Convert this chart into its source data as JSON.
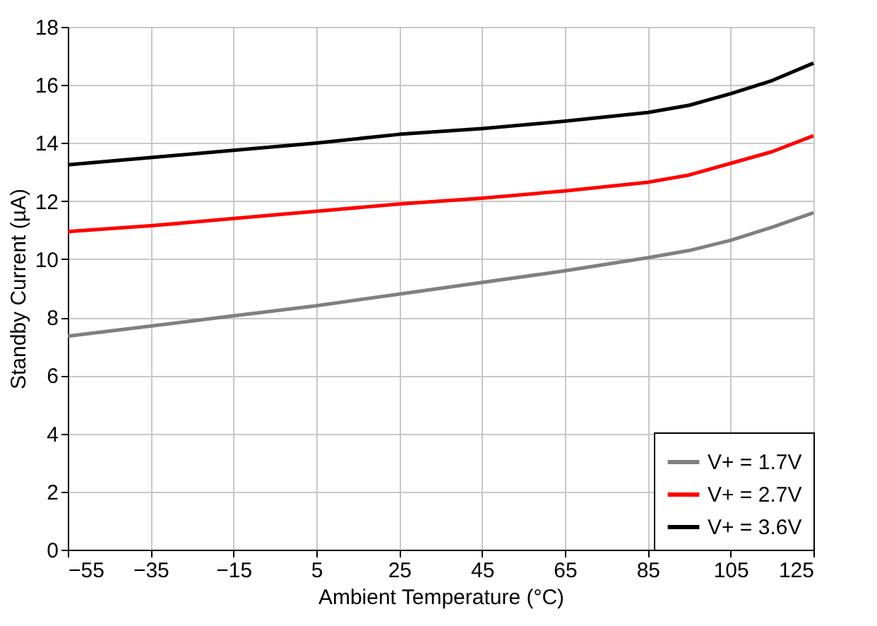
{
  "chart_data": {
    "type": "line",
    "xlabel": "Ambient Temperature (°C)",
    "ylabel": "Standby Current (µA)",
    "x": [
      -55,
      -35,
      -15,
      5,
      25,
      45,
      65,
      85,
      95,
      105,
      115,
      125
    ],
    "series": [
      {
        "name": "V+ = 1.7V",
        "color": "#808080",
        "values": [
          7.35,
          7.7,
          8.05,
          8.4,
          8.8,
          9.2,
          9.6,
          10.05,
          10.3,
          10.65,
          11.1,
          11.6
        ]
      },
      {
        "name": "V+ = 2.7V",
        "color": "#ff0000",
        "values": [
          10.95,
          11.15,
          11.4,
          11.65,
          11.9,
          12.1,
          12.35,
          12.65,
          12.9,
          13.3,
          13.7,
          14.25
        ]
      },
      {
        "name": "V+ = 3.6V",
        "color": "#000000",
        "values": [
          13.25,
          13.5,
          13.75,
          14.0,
          14.3,
          14.5,
          14.75,
          15.05,
          15.3,
          15.7,
          16.15,
          16.75
        ]
      }
    ],
    "xlim": [
      -55,
      125
    ],
    "xticks": [
      -55,
      -35,
      -15,
      5,
      25,
      45,
      65,
      85,
      105,
      125
    ],
    "ylim": [
      0,
      18
    ],
    "yticks": [
      0,
      2,
      4,
      6,
      8,
      10,
      12,
      14,
      16,
      18
    ],
    "grid": true,
    "legend": "bottom right",
    "marker": "none",
    "line_style": "solid"
  }
}
